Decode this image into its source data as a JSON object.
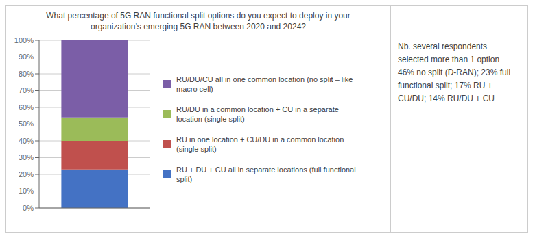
{
  "chart_data": {
    "type": "bar",
    "stacked": true,
    "title": "What percentage of 5G RAN functional split options do you expect to deploy in your\norganization’s emerging 5G RAN between 2020 and 2024?",
    "categories": [
      null
    ],
    "series": [
      {
        "name": "RU + DU + CU all in separate locations (full functional\nsplit)",
        "color": "#4472C4",
        "values": [
          23
        ]
      },
      {
        "name": "RU in one location + CU/DU in a common location\n(single split)",
        "color": "#C0504D",
        "values": [
          17
        ]
      },
      {
        "name": "RU/DU in a common location + CU in a separate\nlocation (single split)",
        "color": "#9BBB59",
        "values": [
          14
        ]
      },
      {
        "name": "RU/DU/CU all in one common location (no split – like\nmacro cell)",
        "color": "#7B5EA7",
        "values": [
          46
        ]
      }
    ],
    "ylim": [
      0,
      100
    ],
    "yticks": [
      {
        "value": 0,
        "label": "0%"
      },
      {
        "value": 10,
        "label": "10%"
      },
      {
        "value": 20,
        "label": "20%"
      },
      {
        "value": 30,
        "label": "30%"
      },
      {
        "value": 40,
        "label": "40%"
      },
      {
        "value": 50,
        "label": "50%"
      },
      {
        "value": 60,
        "label": "60%"
      },
      {
        "value": 70,
        "label": "70%"
      },
      {
        "value": 80,
        "label": "80%"
      },
      {
        "value": 90,
        "label": "90%"
      },
      {
        "value": 100,
        "label": "100%"
      }
    ],
    "grid": true,
    "legend": "right",
    "tick_labels": "y",
    "annotation": "Nb. several respondents\nselected more than 1 option\n46% no split (D-RAN); 23% full\nfunctional split; 17% RU +\nCU/DU; 14% RU/DU + CU"
  }
}
